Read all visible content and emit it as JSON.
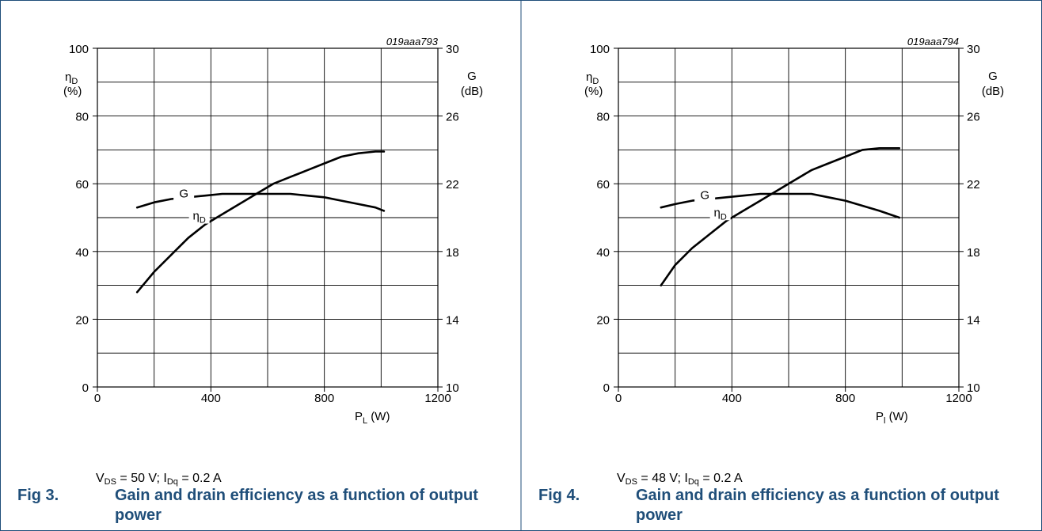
{
  "colors": {
    "border": "#1f4e79",
    "caption": "#1f4e79",
    "curve": "#000000",
    "grid": "#000000"
  },
  "chart_data": [
    {
      "type": "line",
      "figure_label": "Fig 3.",
      "title": "Gain and drain efficiency as a function of output power",
      "code": "019aaa793",
      "conditions": {
        "vds": "50 V",
        "idq": "0.2 A"
      },
      "xlabel": {
        "sym": "P",
        "sub": "L",
        "unit": "(W)"
      },
      "ylabel_left": {
        "sym": "η",
        "sub": "D",
        "unit": "(%)"
      },
      "ylabel_right": {
        "sym": "G",
        "unit": "(dB)"
      },
      "xlim": [
        0,
        1200
      ],
      "ylim_left": [
        0,
        100
      ],
      "ylim_right": [
        10,
        30
      ],
      "xticks": [
        0,
        400,
        800,
        1200
      ],
      "yticks_left": [
        0,
        20,
        40,
        60,
        80,
        100
      ],
      "yticks_right": [
        10,
        14,
        18,
        22,
        26,
        30
      ],
      "grid": true,
      "series": [
        {
          "name": "G",
          "axis": "right",
          "label": {
            "sym": "G",
            "sub": ""
          },
          "x": [
            140,
            200,
            260,
            320,
            380,
            440,
            500,
            560,
            620,
            680,
            740,
            800,
            860,
            920,
            980,
            1010
          ],
          "y": [
            20.6,
            20.9,
            21.1,
            21.2,
            21.3,
            21.4,
            21.4,
            21.4,
            21.4,
            21.4,
            21.3,
            21.2,
            21.0,
            20.8,
            20.6,
            20.4
          ]
        },
        {
          "name": "ηD",
          "axis": "left",
          "label": {
            "sym": "η",
            "sub": "D"
          },
          "x": [
            140,
            200,
            260,
            320,
            380,
            440,
            500,
            560,
            620,
            680,
            740,
            800,
            860,
            920,
            980,
            1010
          ],
          "y": [
            28,
            34,
            39,
            44,
            48,
            51,
            54,
            57,
            60,
            62,
            64,
            66,
            68,
            69,
            69.5,
            69.5
          ]
        }
      ]
    },
    {
      "type": "line",
      "figure_label": "Fig 4.",
      "title": "Gain and drain efficiency as a function of output power",
      "code": "019aaa794",
      "conditions": {
        "vds": "48 V",
        "idq": "0.2 A"
      },
      "xlabel": {
        "sym": "P",
        "sub": "l",
        "unit": "(W)"
      },
      "ylabel_left": {
        "sym": "η",
        "sub": "D",
        "unit": "(%)"
      },
      "ylabel_right": {
        "sym": "G",
        "unit": "(dB)"
      },
      "xlim": [
        0,
        1200
      ],
      "ylim_left": [
        0,
        100
      ],
      "ylim_right": [
        10,
        30
      ],
      "xticks": [
        0,
        400,
        800,
        1200
      ],
      "yticks_left": [
        0,
        20,
        40,
        60,
        80,
        100
      ],
      "yticks_right": [
        10,
        14,
        18,
        22,
        26,
        30
      ],
      "grid": true,
      "series": [
        {
          "name": "G",
          "axis": "right",
          "label": {
            "sym": "G",
            "sub": ""
          },
          "x": [
            150,
            200,
            260,
            320,
            380,
            440,
            500,
            560,
            620,
            680,
            740,
            800,
            860,
            920,
            990
          ],
          "y": [
            20.6,
            20.8,
            21.0,
            21.1,
            21.2,
            21.3,
            21.4,
            21.4,
            21.4,
            21.4,
            21.2,
            21.0,
            20.7,
            20.4,
            20.0
          ]
        },
        {
          "name": "ηD",
          "axis": "left",
          "label": {
            "sym": "η",
            "sub": "D"
          },
          "x": [
            150,
            200,
            260,
            320,
            380,
            440,
            500,
            560,
            620,
            680,
            740,
            800,
            860,
            920,
            990
          ],
          "y": [
            30,
            36,
            41,
            45,
            49,
            52,
            55,
            58,
            61,
            64,
            66,
            68,
            70,
            70.5,
            70.5
          ]
        }
      ]
    }
  ]
}
